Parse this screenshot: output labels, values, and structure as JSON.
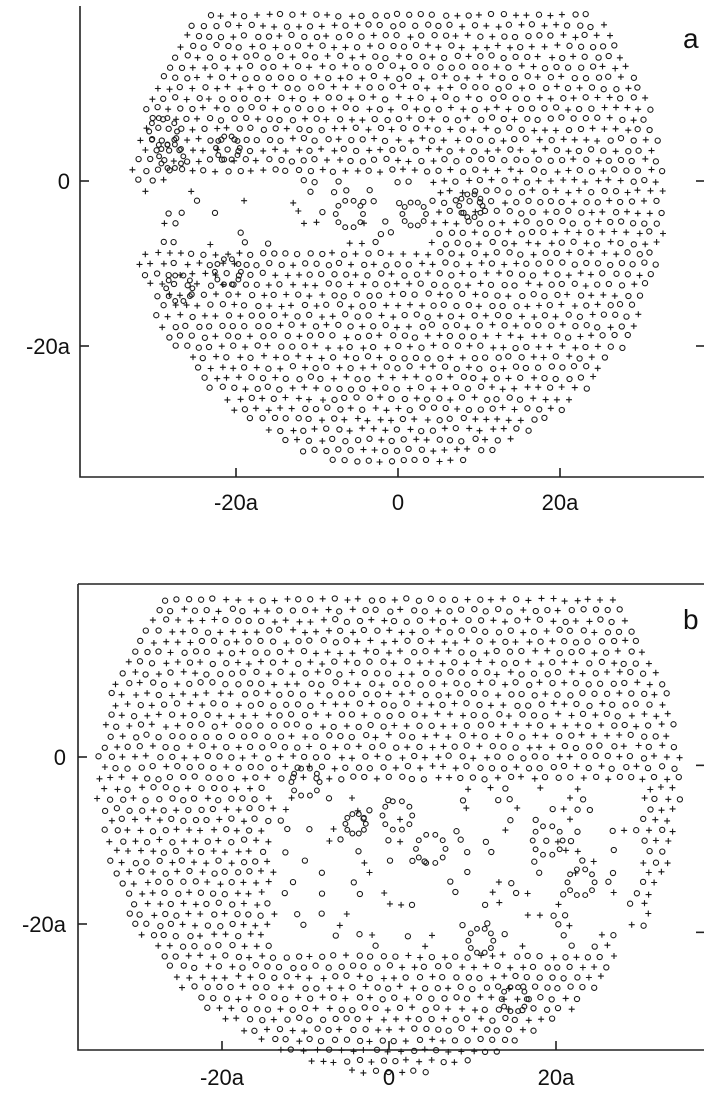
{
  "chart_data": [
    {
      "type": "scatter",
      "panel_label": "a",
      "xlim": [
        -39,
        37
      ],
      "ylim": [
        -35,
        21
      ],
      "x_ticks": [
        {
          "value": -20,
          "label": "-20a"
        },
        {
          "value": 0,
          "label": "0"
        },
        {
          "value": 20,
          "label": "20a"
        }
      ],
      "y_ticks": [
        {
          "value": 0,
          "label": "0"
        },
        {
          "value": -20,
          "label": "-20a"
        }
      ],
      "markers": [
        "o",
        "+"
      ],
      "sample_region": {
        "shape": "truncated disk",
        "center": [
          0,
          -2
        ],
        "radius": 33,
        "top_cut": 20.5
      }
    },
    {
      "type": "scatter",
      "panel_label": "b",
      "xlim": [
        -36,
        38
      ],
      "ylim": [
        -36,
        21
      ],
      "x_ticks": [
        {
          "value": -20,
          "label": "-20a"
        },
        {
          "value": 0,
          "label": "0"
        },
        {
          "value": 20,
          "label": "20a"
        }
      ],
      "y_ticks": [
        {
          "value": 0,
          "label": "0"
        },
        {
          "value": -20,
          "label": "-20a"
        }
      ],
      "markers": [
        "o",
        "+"
      ],
      "sample_region": {
        "shape": "truncated disk",
        "center": [
          0,
          -3
        ],
        "radius": 35,
        "top_cut": 20
      }
    }
  ]
}
